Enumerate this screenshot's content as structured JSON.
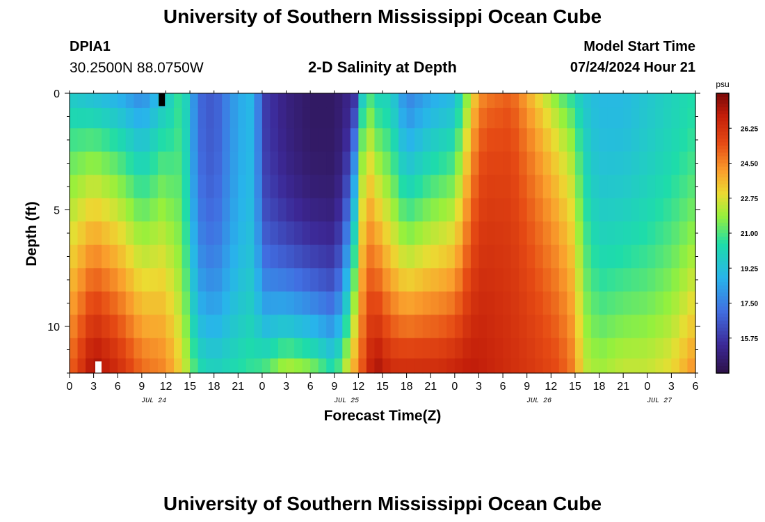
{
  "header": {
    "title": "University of Southern Mississippi Ocean Cube",
    "station_id": "DPIA1",
    "station_coords": "30.2500N  88.0750W",
    "subtitle": "2-D Salinity at Depth",
    "model_start_label": "Model Start Time",
    "model_start_time": "07/24/2024 Hour 21"
  },
  "footer": {
    "title": "University of Southern Mississippi Ocean Cube"
  },
  "chart_data": {
    "type": "heatmap",
    "title": "2-D Salinity at Depth",
    "xlabel": "Forecast Time(Z)",
    "ylabel": "Depth (ft)",
    "x_tick_labels": [
      "0",
      "3",
      "6",
      "9",
      "12",
      "15",
      "18",
      "21",
      "0",
      "3",
      "6",
      "9",
      "12",
      "15",
      "18",
      "21",
      "0",
      "3",
      "6",
      "9",
      "12",
      "15",
      "18",
      "21",
      "0",
      "3",
      "6"
    ],
    "x_hours_start": 0,
    "x_hours_end": 78,
    "date_labels": [
      {
        "label": "JUL 24",
        "hour": 10.5
      },
      {
        "label": "JUL 25",
        "hour": 34.5
      },
      {
        "label": "JUL 26",
        "hour": 58.5
      },
      {
        "label": "JUL 27",
        "hour": 73.5
      }
    ],
    "y_tick_labels": [
      "0",
      "5",
      "10"
    ],
    "y_tick_values": [
      0,
      5,
      10
    ],
    "ylim": [
      0,
      12
    ],
    "colorbar": {
      "unit": "psu",
      "min": 14.0,
      "max": 28.0,
      "tick_labels": [
        "26.25",
        "24.50",
        "22.75",
        "21.00",
        "19.25",
        "17.50",
        "15.75"
      ],
      "tick_values": [
        26.25,
        24.5,
        22.75,
        21.0,
        19.25,
        17.5,
        15.75
      ]
    },
    "depth_levels_ft": [
      0.25,
      1.0,
      2.0,
      3.0,
      4.0,
      5.0,
      6.0,
      7.0,
      8.0,
      9.0,
      10.0,
      11.0,
      11.75
    ],
    "bottom_salinity_keyframes": [
      {
        "hour": 0,
        "psu": 25.0
      },
      {
        "hour": 3,
        "psu": 27.5
      },
      {
        "hour": 6,
        "psu": 26.5
      },
      {
        "hour": 9,
        "psu": 25.0
      },
      {
        "hour": 12,
        "psu": 24.5
      },
      {
        "hour": 14,
        "psu": 23.0
      },
      {
        "hour": 16,
        "psu": 20.5
      },
      {
        "hour": 18,
        "psu": 20.0
      },
      {
        "hour": 21,
        "psu": 20.5
      },
      {
        "hour": 24,
        "psu": 21.0
      },
      {
        "hour": 27,
        "psu": 22.5
      },
      {
        "hour": 30,
        "psu": 22.0
      },
      {
        "hour": 33,
        "psu": 20.5
      },
      {
        "hour": 35.5,
        "psu": 24.0
      },
      {
        "hour": 38,
        "psu": 27.5
      },
      {
        "hour": 40,
        "psu": 26.5
      },
      {
        "hour": 43,
        "psu": 26.5
      },
      {
        "hour": 46,
        "psu": 26.5
      },
      {
        "hour": 50,
        "psu": 27.0
      },
      {
        "hour": 54,
        "psu": 26.5
      },
      {
        "hour": 58,
        "psu": 26.0
      },
      {
        "hour": 61,
        "psu": 25.5
      },
      {
        "hour": 63,
        "psu": 24.5
      },
      {
        "hour": 64,
        "psu": 22.5
      },
      {
        "hour": 66,
        "psu": 22.0
      },
      {
        "hour": 69,
        "psu": 22.5
      },
      {
        "hour": 72,
        "psu": 22.5
      },
      {
        "hour": 75,
        "psu": 23.0
      },
      {
        "hour": 78,
        "psu": 24.5
      }
    ],
    "surface_salinity_keyframes": [
      {
        "hour": 0,
        "psu": 19.5
      },
      {
        "hour": 3,
        "psu": 19.0
      },
      {
        "hour": 6,
        "psu": 18.5
      },
      {
        "hour": 9,
        "psu": 17.5
      },
      {
        "hour": 12,
        "psu": 19.5
      },
      {
        "hour": 14,
        "psu": 21.0
      },
      {
        "hour": 16,
        "psu": 17.0
      },
      {
        "hour": 18,
        "psu": 16.5
      },
      {
        "hour": 21,
        "psu": 18.5
      },
      {
        "hour": 23,
        "psu": 19.0
      },
      {
        "hour": 24,
        "psu": 16.0
      },
      {
        "hour": 27,
        "psu": 15.0
      },
      {
        "hour": 30,
        "psu": 14.5
      },
      {
        "hour": 33,
        "psu": 14.5
      },
      {
        "hour": 35.5,
        "psu": 15.5
      },
      {
        "hour": 37,
        "psu": 21.0
      },
      {
        "hour": 38.5,
        "psu": 20.0
      },
      {
        "hour": 40,
        "psu": 20.0
      },
      {
        "hour": 42,
        "psu": 17.5
      },
      {
        "hour": 45,
        "psu": 18.5
      },
      {
        "hour": 48,
        "psu": 19.0
      },
      {
        "hour": 51,
        "psu": 24.0
      },
      {
        "hour": 55,
        "psu": 25.0
      },
      {
        "hour": 58,
        "psu": 23.0
      },
      {
        "hour": 61,
        "psu": 21.0
      },
      {
        "hour": 64,
        "psu": 19.5
      },
      {
        "hour": 66,
        "psu": 19.0
      },
      {
        "hour": 69,
        "psu": 19.0
      },
      {
        "hour": 72,
        "psu": 19.5
      },
      {
        "hour": 75,
        "psu": 20.0
      },
      {
        "hour": 78,
        "psu": 20.5
      }
    ],
    "depth_profile_exponent_keyframes": [
      {
        "hour": 0,
        "k": 0.8
      },
      {
        "hour": 12,
        "k": 0.8
      },
      {
        "hour": 16,
        "k": 2.5
      },
      {
        "hour": 33,
        "k": 3.0
      },
      {
        "hour": 36,
        "k": 0.5
      },
      {
        "hour": 40,
        "k": 1.2
      },
      {
        "hour": 48,
        "k": 1.0
      },
      {
        "hour": 52,
        "k": 0.4
      },
      {
        "hour": 63,
        "k": 0.6
      },
      {
        "hour": 66,
        "k": 1.6
      },
      {
        "hour": 78,
        "k": 1.6
      }
    ],
    "markers": [
      {
        "hour": 11.5,
        "depth_top": 0.0,
        "depth_bottom": 0.55,
        "color": "#000000",
        "name": "surface-marker"
      },
      {
        "hour": 3.6,
        "depth_top": 11.5,
        "depth_bottom": 12.0,
        "color": "#ffffff",
        "name": "bottom-marker"
      }
    ]
  }
}
